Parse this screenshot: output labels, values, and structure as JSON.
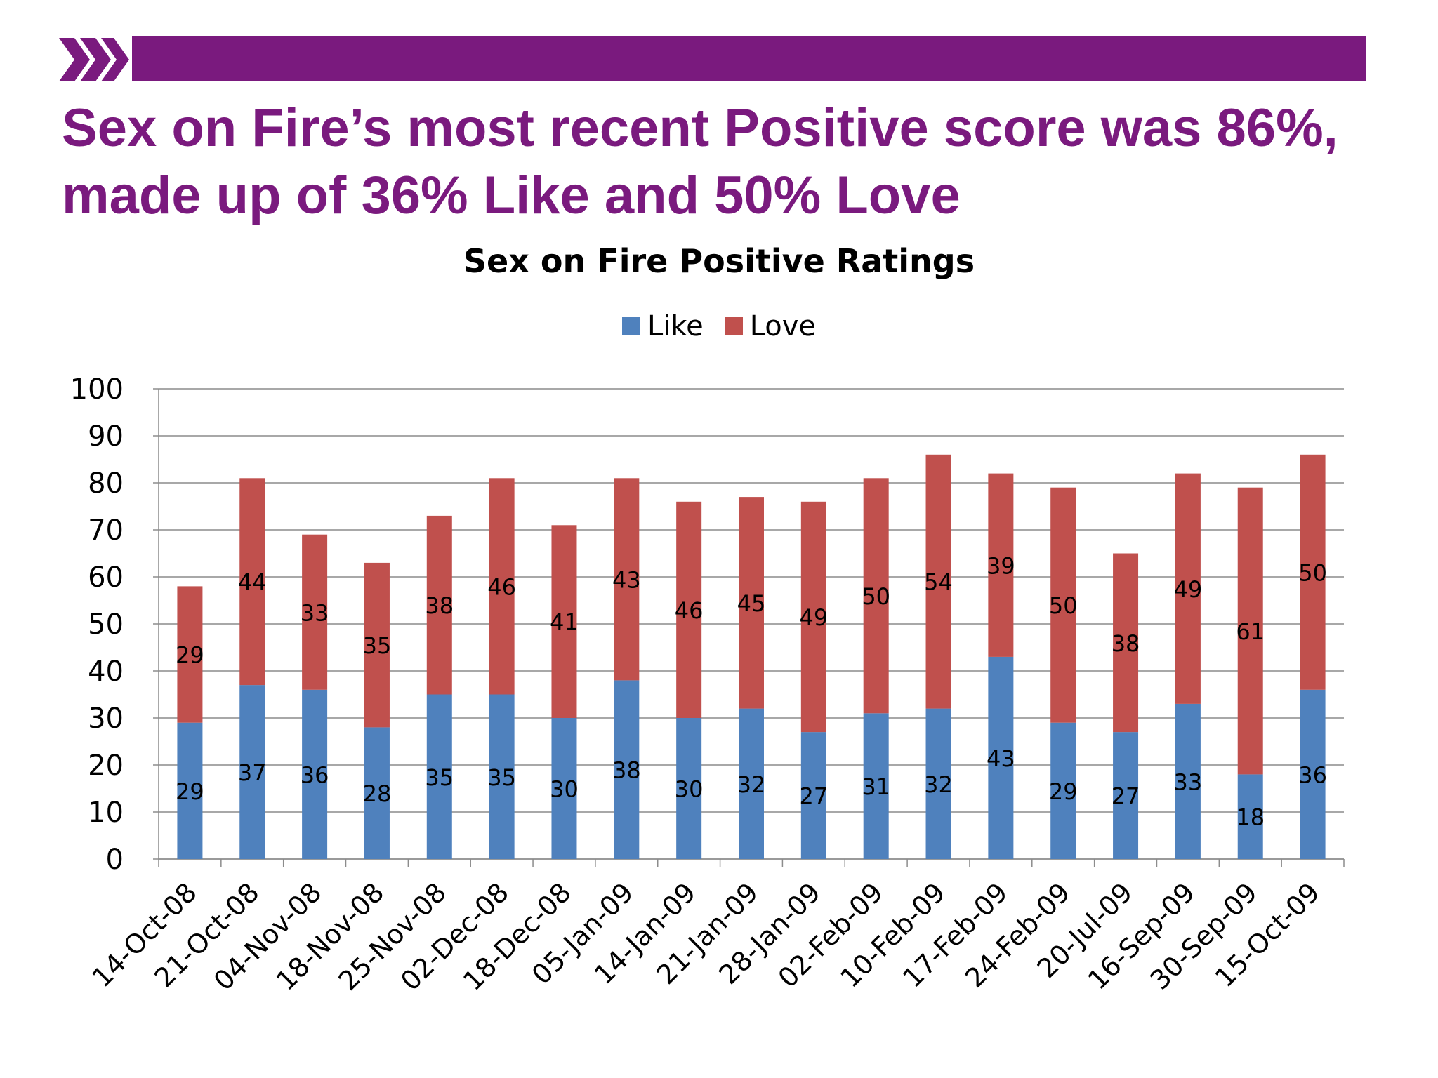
{
  "headline": "Sex on Fire’s most recent Positive score was 86%, made up of 36% Like and 50% Love",
  "colors": {
    "brand": "#7a1a7e",
    "like": "#4f81bd",
    "love": "#c0504d"
  },
  "chart_data": {
    "type": "bar",
    "stacked": true,
    "title": "Sex on Fire Positive Ratings",
    "legend_position": "top-center",
    "grid": true,
    "ylim": [
      0,
      100
    ],
    "yticks": [
      0,
      10,
      20,
      30,
      40,
      50,
      60,
      70,
      80,
      90,
      100
    ],
    "categories": [
      "14-Oct-08",
      "21-Oct-08",
      "04-Nov-08",
      "18-Nov-08",
      "25-Nov-08",
      "02-Dec-08",
      "18-Dec-08",
      "05-Jan-09",
      "14-Jan-09",
      "21-Jan-09",
      "28-Jan-09",
      "02-Feb-09",
      "10-Feb-09",
      "17-Feb-09",
      "24-Feb-09",
      "20-Jul-09",
      "16-Sep-09",
      "30-Sep-09",
      "15-Oct-09"
    ],
    "series": [
      {
        "name": "Like",
        "color": "#4f81bd",
        "values": [
          29,
          37,
          36,
          28,
          35,
          35,
          30,
          38,
          30,
          32,
          27,
          31,
          32,
          43,
          29,
          27,
          33,
          18,
          36
        ]
      },
      {
        "name": "Love",
        "color": "#c0504d",
        "values": [
          29,
          44,
          33,
          35,
          38,
          46,
          41,
          43,
          46,
          45,
          49,
          50,
          54,
          39,
          50,
          38,
          49,
          61,
          50
        ]
      }
    ]
  }
}
